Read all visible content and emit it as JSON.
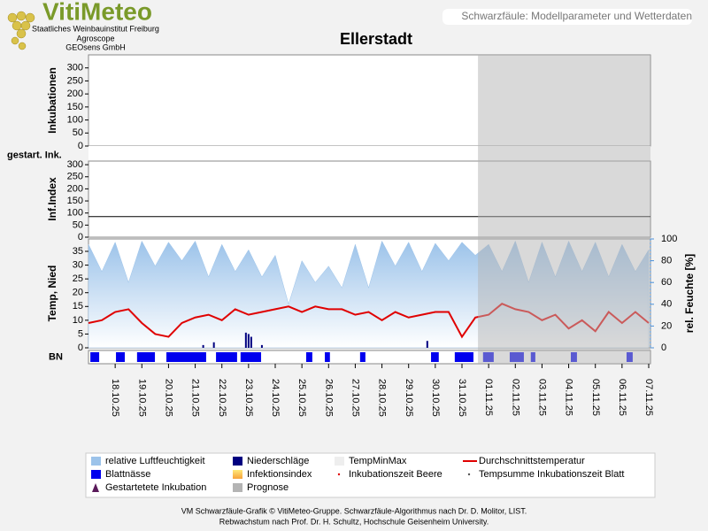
{
  "header": {
    "logo": "VitiMeteo",
    "lines": [
      "Staatliches Weinbauinstitut Freiburg",
      "Agroscope",
      "GEOsens GmbH"
    ],
    "caption": "Schwarzfäule: Modellparameter und Wetterdaten"
  },
  "chart_data": {
    "type": "line",
    "title": "Ellerstadt",
    "xlim": [
      0,
      21
    ],
    "xticks": [
      {
        "value": 1,
        "label": "18.10.25"
      },
      {
        "value": 2,
        "label": "19.10.25"
      },
      {
        "value": 3,
        "label": "20.10.25"
      },
      {
        "value": 4,
        "label": "21.10.25"
      },
      {
        "value": 5,
        "label": "22.10.25"
      },
      {
        "value": 6,
        "label": "23.10.25"
      },
      {
        "value": 7,
        "label": "24.10.25"
      },
      {
        "value": 8,
        "label": "25.10.25"
      },
      {
        "value": 9,
        "label": "26.10.25"
      },
      {
        "value": 10,
        "label": "27.10.25"
      },
      {
        "value": 11,
        "label": "28.10.25"
      },
      {
        "value": 12,
        "label": "29.10.25"
      },
      {
        "value": 13,
        "label": "30.10.25"
      },
      {
        "value": 14,
        "label": "31.10.25"
      },
      {
        "value": 15,
        "label": "01.11.25"
      },
      {
        "value": 16,
        "label": "02.11.25"
      },
      {
        "value": 17,
        "label": "03.11.25"
      },
      {
        "value": 18,
        "label": "04.11.25"
      },
      {
        "value": 19,
        "label": "05.11.25"
      },
      {
        "value": 20,
        "label": "06.11.25"
      },
      {
        "value": 21,
        "label": "07.11.25"
      }
    ],
    "panels": [
      {
        "ylabel": "Inkubationen",
        "ylim": [
          0,
          350
        ],
        "yticks": [
          0,
          50,
          100,
          150,
          200,
          250,
          300
        ]
      },
      {
        "ylabel": "gestart. Ink."
      },
      {
        "ylabel": "Inf.Index",
        "ylim": [
          0,
          315
        ],
        "yticks": [
          0,
          50,
          100,
          150,
          200,
          250,
          300
        ],
        "threshold": 85
      },
      {
        "ylabel": "Temp, Nied",
        "ylim": [
          0,
          39.5
        ],
        "yticks": [
          0,
          5,
          10,
          15,
          20,
          25,
          30,
          35
        ],
        "y2label": "rel. Feuchte [%]",
        "y2lim": [
          0,
          100
        ],
        "y2ticks": [
          0,
          20,
          40,
          60,
          80,
          100
        ]
      },
      {
        "ylabel": "BN"
      }
    ],
    "x": [
      0,
      0.5,
      1,
      1.5,
      2,
      2.5,
      3,
      3.5,
      4,
      4.5,
      5,
      5.5,
      6,
      6.5,
      7,
      7.5,
      8,
      8.5,
      9,
      9.5,
      10,
      10.5,
      11,
      11.5,
      12,
      12.5,
      13,
      13.5,
      14,
      14.5,
      15,
      15.5,
      16,
      16.5,
      17,
      17.5,
      18,
      18.5,
      19,
      19.5,
      20,
      20.5,
      21
    ],
    "series": [
      {
        "name": "relative Luftfeuchtigkeit",
        "type": "area",
        "symbol": "rect",
        "panel": 3,
        "axis": "y2",
        "color": "#9cc3ea",
        "values": [
          95,
          70,
          97,
          60,
          98,
          75,
          97,
          80,
          98,
          65,
          95,
          70,
          90,
          65,
          85,
          40,
          80,
          60,
          75,
          55,
          95,
          55,
          98,
          75,
          97,
          70,
          96,
          80,
          97,
          85,
          95,
          70,
          98,
          60,
          97,
          65,
          98,
          70,
          97,
          65,
          95,
          70,
          90
        ]
      },
      {
        "name": "Niederschläge",
        "type": "bar",
        "symbol": "rect",
        "panel": 3,
        "color": "#000080",
        "x": [
          4.3,
          4.7,
          5.9,
          6.0,
          6.1,
          6.5,
          12.7
        ],
        "values": [
          1,
          2,
          5.5,
          5,
          4,
          1,
          2.5
        ]
      },
      {
        "name": "TempMinMax",
        "type": "none",
        "symbol": "rect",
        "color": "#eeeeee"
      },
      {
        "name": "Durchschnittstemperatur",
        "type": "line",
        "symbol": "line",
        "panel": 3,
        "color": "#e00000",
        "values": [
          9,
          10,
          13,
          14,
          9,
          5,
          4,
          9,
          11,
          12,
          10,
          14,
          12,
          13,
          14,
          15,
          13,
          15,
          14,
          14,
          12,
          13,
          10,
          13,
          11,
          12,
          13,
          13,
          4,
          11,
          12,
          16,
          14,
          13,
          10,
          12,
          7,
          10,
          6,
          13,
          9,
          13,
          9
        ]
      },
      {
        "name": "Blattnässe",
        "type": "periods",
        "symbol": "rect",
        "panel": 4,
        "color": "#0000ee",
        "periods": [
          [
            0.07,
            0.4
          ],
          [
            1.03,
            1.36
          ],
          [
            1.82,
            2.49
          ],
          [
            2.92,
            4.41
          ],
          [
            4.78,
            5.57
          ],
          [
            5.7,
            6.47
          ],
          [
            8.16,
            8.39
          ],
          [
            8.86,
            9.05
          ],
          [
            10.18,
            10.38
          ],
          [
            12.84,
            13.13
          ],
          [
            13.73,
            14.43
          ],
          [
            14.79,
            15.19
          ],
          [
            15.79,
            16.32
          ],
          [
            16.58,
            16.75
          ],
          [
            18.08,
            18.31
          ],
          [
            20.17,
            20.4
          ]
        ]
      },
      {
        "name": "Infektionsindex",
        "type": "none",
        "symbol": "gradient",
        "color": "#f7a23a"
      },
      {
        "name": "Inkubationszeit Beere",
        "type": "none",
        "symbol": "dot",
        "color": "#e00000"
      },
      {
        "name": "Tempsumme Inkubationszeit Blatt",
        "type": "none",
        "symbol": "dot",
        "color": "#555555"
      },
      {
        "name": "Gestartetete Inkubation",
        "type": "none",
        "symbol": "triangle",
        "color": "#5a1a5a"
      },
      {
        "name": "Prognose",
        "type": "forecast",
        "symbol": "rect",
        "color": "#b4b4b4",
        "start": 14.6
      }
    ]
  },
  "footer": [
    "VM Schwarzfäule-Grafik © VitiMeteo-Gruppe. Schwarzfäule-Algorithmus nach Dr. D. Molitor, LIST.",
    "Rebwachstum nach Prof. Dr. H. Schultz, Hochschule Geisenheim University."
  ]
}
